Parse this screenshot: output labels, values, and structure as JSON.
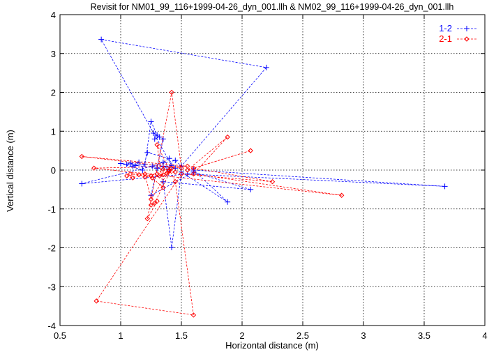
{
  "chart_data": {
    "type": "scatter",
    "title": "Revisit for NM01_99_116+1999-04-26_dyn_001.llh & NM02_99_116+1999-04-26_dyn_001.llh",
    "xlabel": "Horizontal distance (m)",
    "ylabel": "Vertical distance (m)",
    "xlim": [
      0.5,
      4
    ],
    "ylim": [
      -4,
      4
    ],
    "x_ticks": [
      "0.5",
      "1",
      "1.5",
      "2",
      "2.5",
      "3",
      "3.5",
      "4"
    ],
    "y_ticks": [
      "-4",
      "-3",
      "-2",
      "-1",
      "0",
      "1",
      "2",
      "3",
      "4"
    ],
    "x_tick_values": [
      0.5,
      1,
      1.5,
      2,
      2.5,
      3,
      3.5,
      4
    ],
    "y_tick_values": [
      -4,
      -3,
      -2,
      -1,
      0,
      1,
      2,
      3,
      4
    ],
    "grid": true,
    "legend_position": "top-right",
    "series": [
      {
        "name": "1-2",
        "color": "#0000ff",
        "marker": "plus",
        "line": "dashed",
        "points": [
          [
            1.05,
            0.15
          ],
          [
            1.08,
            0.18
          ],
          [
            1.12,
            0.12
          ],
          [
            1.15,
            0.2
          ],
          [
            1.1,
            0.1
          ],
          [
            1.2,
            0.15
          ],
          [
            1.25,
            1.25
          ],
          [
            1.3,
            0.9
          ],
          [
            1.28,
            0.8
          ],
          [
            1.32,
            0.85
          ],
          [
            1.27,
            0.95
          ],
          [
            1.35,
            0.8
          ],
          [
            1.3,
            0.05
          ],
          [
            1.35,
            0.1
          ],
          [
            1.4,
            0.0
          ],
          [
            1.45,
            0.05
          ],
          [
            1.38,
            0.08
          ],
          [
            1.42,
            0.12
          ],
          [
            0.84,
            3.36
          ],
          [
            2.2,
            2.64
          ],
          [
            1.5,
            0.1
          ],
          [
            1.45,
            0.25
          ],
          [
            0.68,
            -0.35
          ],
          [
            1.55,
            -0.1
          ],
          [
            3.67,
            -0.42
          ],
          [
            1.6,
            0.0
          ],
          [
            1.88,
            -0.82
          ],
          [
            1.5,
            -0.05
          ],
          [
            1.42,
            -1.99
          ],
          [
            1.35,
            -0.3
          ],
          [
            2.07,
            -0.5
          ],
          [
            1.6,
            -0.05
          ],
          [
            1.25,
            -0.65
          ],
          [
            1.3,
            0.05
          ],
          [
            1.0,
            0.17
          ],
          [
            1.18,
            0.0
          ],
          [
            1.22,
            0.45
          ],
          [
            1.4,
            0.3
          ],
          [
            1.35,
            0.2
          ],
          [
            1.26,
            0.1
          ]
        ]
      },
      {
        "name": "2-1",
        "color": "#ff0000",
        "marker": "diamond",
        "line": "dashed",
        "points": [
          [
            1.05,
            -0.15
          ],
          [
            1.1,
            -0.2
          ],
          [
            1.15,
            -0.12
          ],
          [
            1.2,
            -0.18
          ],
          [
            1.25,
            -0.15
          ],
          [
            1.08,
            -0.1
          ],
          [
            1.3,
            -0.1
          ],
          [
            1.35,
            0.02
          ],
          [
            1.4,
            0.0
          ],
          [
            1.45,
            -0.05
          ],
          [
            1.38,
            -0.08
          ],
          [
            1.42,
            0.05
          ],
          [
            1.28,
            -0.85
          ],
          [
            1.25,
            -0.9
          ],
          [
            1.3,
            -0.8
          ],
          [
            1.22,
            -1.25
          ],
          [
            1.42,
            2.0
          ],
          [
            1.5,
            0.05
          ],
          [
            0.68,
            0.35
          ],
          [
            1.55,
            0.1
          ],
          [
            0.78,
            0.05
          ],
          [
            2.82,
            -0.65
          ],
          [
            1.6,
            -0.1
          ],
          [
            1.88,
            0.85
          ],
          [
            1.55,
            0.0
          ],
          [
            2.07,
            0.5
          ],
          [
            1.6,
            0.05
          ],
          [
            2.25,
            -0.3
          ],
          [
            1.5,
            -0.1
          ],
          [
            0.8,
            -3.37
          ],
          [
            1.6,
            -3.73
          ],
          [
            1.45,
            -0.3
          ],
          [
            1.3,
            0.65
          ],
          [
            1.35,
            -0.45
          ],
          [
            1.26,
            -0.2
          ],
          [
            1.35,
            -0.12
          ],
          [
            1.32,
            -0.15
          ],
          [
            1.4,
            -0.02
          ],
          [
            1.25,
            -0.75
          ],
          [
            1.2,
            -0.1
          ]
        ]
      }
    ]
  }
}
